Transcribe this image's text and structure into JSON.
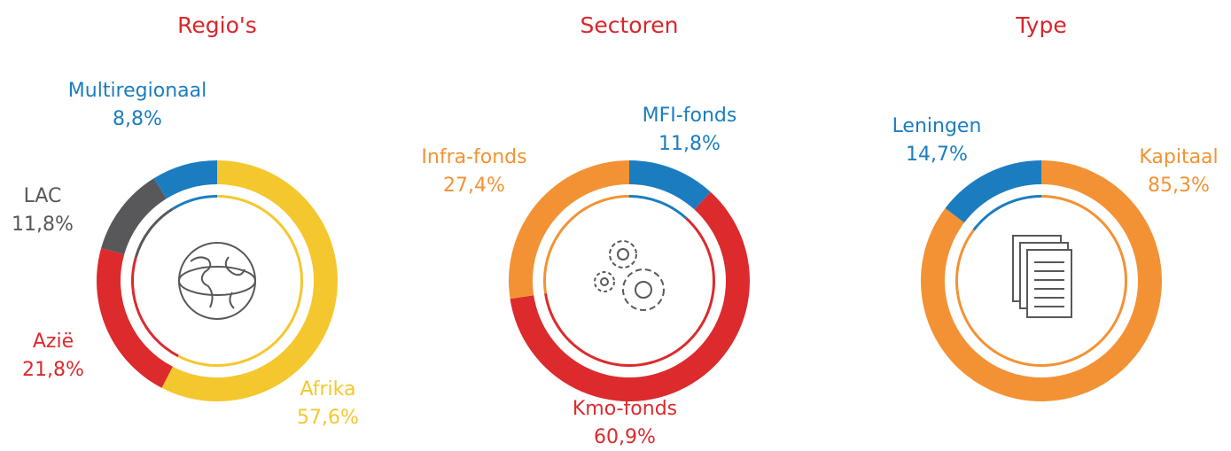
{
  "chart_data": [
    {
      "type": "pie",
      "title": "Regio's",
      "categories": [
        "Afrika",
        "Azië",
        "LAC",
        "Multiregionaal"
      ],
      "values": [
        57.6,
        21.8,
        11.8,
        8.8
      ],
      "value_labels": [
        "57,6%",
        "21,8%",
        "11,8%",
        "8,8%"
      ],
      "colors": [
        "#f5c72e",
        "#dc2a2d",
        "#58585a",
        "#1b7dc0"
      ]
    },
    {
      "type": "pie",
      "title": "Sectoren",
      "categories": [
        "MFI-fonds",
        "Kmo-fonds",
        "Infra-fonds"
      ],
      "values": [
        11.8,
        60.9,
        27.4
      ],
      "value_labels": [
        "11,8%",
        "60,9%",
        "27,4%"
      ],
      "colors": [
        "#1b7dc0",
        "#dc2a2d",
        "#f39234"
      ]
    },
    {
      "type": "pie",
      "title": "Type",
      "categories": [
        "Kapitaal",
        "Leningen"
      ],
      "values": [
        85.3,
        14.7
      ],
      "value_labels": [
        "85,3%",
        "14,7%"
      ],
      "colors": [
        "#f39234",
        "#1b7dc0"
      ]
    }
  ]
}
